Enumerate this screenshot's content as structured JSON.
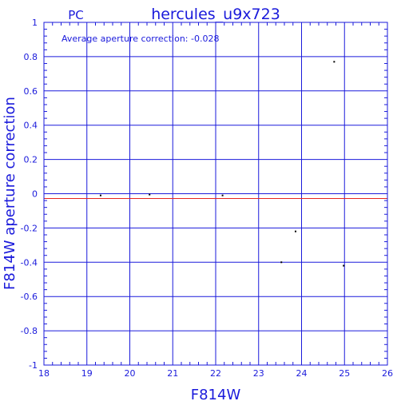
{
  "header": {
    "camera": "PC",
    "title": "hercules_u9x723"
  },
  "chart_data": {
    "type": "scatter",
    "title": "hercules_u9x723",
    "xlabel": "F814W",
    "ylabel": "F814W aperture correction",
    "xlim": [
      18,
      26
    ],
    "ylim": [
      -1,
      1
    ],
    "x_ticks": [
      "18",
      "19",
      "20",
      "21",
      "22",
      "23",
      "24",
      "25",
      "26"
    ],
    "y_ticks": [
      "1",
      "0.8",
      "0.6",
      "0.4",
      "0.2",
      "0",
      "-0.2",
      "-0.4",
      "-0.6",
      "-0.8",
      "-1"
    ],
    "grid": true,
    "annotation": "Average aperture correction: -0.028",
    "average_line": -0.028,
    "series": [
      {
        "x": [
          19.32,
          20.46,
          22.16,
          23.53,
          23.86,
          24.76,
          24.98
        ],
        "y": [
          -0.01,
          -0.005,
          -0.01,
          -0.4,
          -0.22,
          0.77,
          -0.42
        ]
      }
    ],
    "colors": {
      "axes": "#1a1adb",
      "grid": "#1a1adb",
      "average_line": "#e8261e",
      "points": "#000000"
    }
  }
}
